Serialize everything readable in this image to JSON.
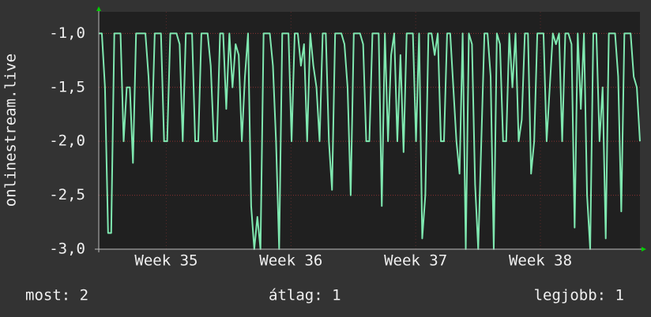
{
  "chart_data": {
    "type": "line",
    "y_label": "onlinestream.live",
    "values": [
      -1,
      -1,
      -1.5,
      -2.85,
      -2.85,
      -1,
      -1,
      -1,
      -2,
      -1.5,
      -1.5,
      -2.2,
      -1,
      -1,
      -1,
      -1,
      -1.4,
      -2,
      -1,
      -1,
      -1,
      -2,
      -2,
      -1,
      -1,
      -1,
      -1.1,
      -2,
      -1,
      -1,
      -1,
      -2,
      -2,
      -1,
      -1,
      -1,
      -1.3,
      -2,
      -2,
      -1,
      -1,
      -1.7,
      -1,
      -1.5,
      -1.1,
      -1.2,
      -2,
      -1.4,
      -1,
      -2.6,
      -3,
      -2.7,
      -3,
      -1,
      -1,
      -1,
      -1.3,
      -2,
      -3,
      -1,
      -1,
      -1,
      -2,
      -1,
      -1,
      -1.3,
      -1.1,
      -2,
      -1,
      -1.3,
      -1.5,
      -2,
      -1,
      -1,
      -2,
      -2.45,
      -1,
      -1,
      -1,
      -1.1,
      -1.5,
      -2.5,
      -1,
      -1,
      -1,
      -1.1,
      -2,
      -2,
      -1,
      -1,
      -1,
      -2.6,
      -1,
      -2,
      -1.2,
      -1,
      -2,
      -1.2,
      -2.1,
      -1,
      -1,
      -1,
      -2,
      -1,
      -2.9,
      -2.5,
      -1,
      -1,
      -1.2,
      -1,
      -2,
      -2,
      -1,
      -1,
      -1.5,
      -2,
      -2.3,
      -1,
      -3,
      -1,
      -1.1,
      -2.4,
      -3,
      -2,
      -1,
      -1,
      -1.4,
      -3,
      -1,
      -1.1,
      -2,
      -2,
      -1,
      -1.5,
      -1,
      -2,
      -1.8,
      -1,
      -1,
      -2.3,
      -2,
      -1,
      -1,
      -1,
      -2,
      -1.5,
      -1,
      -1.1,
      -1,
      -2,
      -1,
      -1,
      -1.1,
      -2.8,
      -1,
      -1.7,
      -1,
      -2.5,
      -3,
      -1,
      -1,
      -2,
      -1.5,
      -2.9,
      -1,
      -1,
      -1,
      -1.4,
      -2.65,
      -1,
      -1,
      -1,
      -1.4,
      -1.5,
      -2
    ],
    "color": "#7fe8b0",
    "xlim": [
      0,
      174
    ],
    "xticks": [
      {
        "value": 21.7,
        "label": "Week 35"
      },
      {
        "value": 61.8,
        "label": "Week 36"
      },
      {
        "value": 101.9,
        "label": "Week 37"
      },
      {
        "value": 142,
        "label": "Week 38"
      }
    ],
    "ylim": [
      -3,
      -0.8
    ],
    "yticks": [
      {
        "value": -3,
        "label": "-3,0"
      },
      {
        "value": -2.5,
        "label": "-2,5"
      },
      {
        "value": -2,
        "label": "-2,0"
      },
      {
        "value": -1.5,
        "label": "-1,5"
      },
      {
        "value": -1,
        "label": "-1,0"
      }
    ],
    "grid": true,
    "footer": {
      "current": "most: 2",
      "average": "átlag: 1",
      "best": "legjobb: 1"
    }
  }
}
